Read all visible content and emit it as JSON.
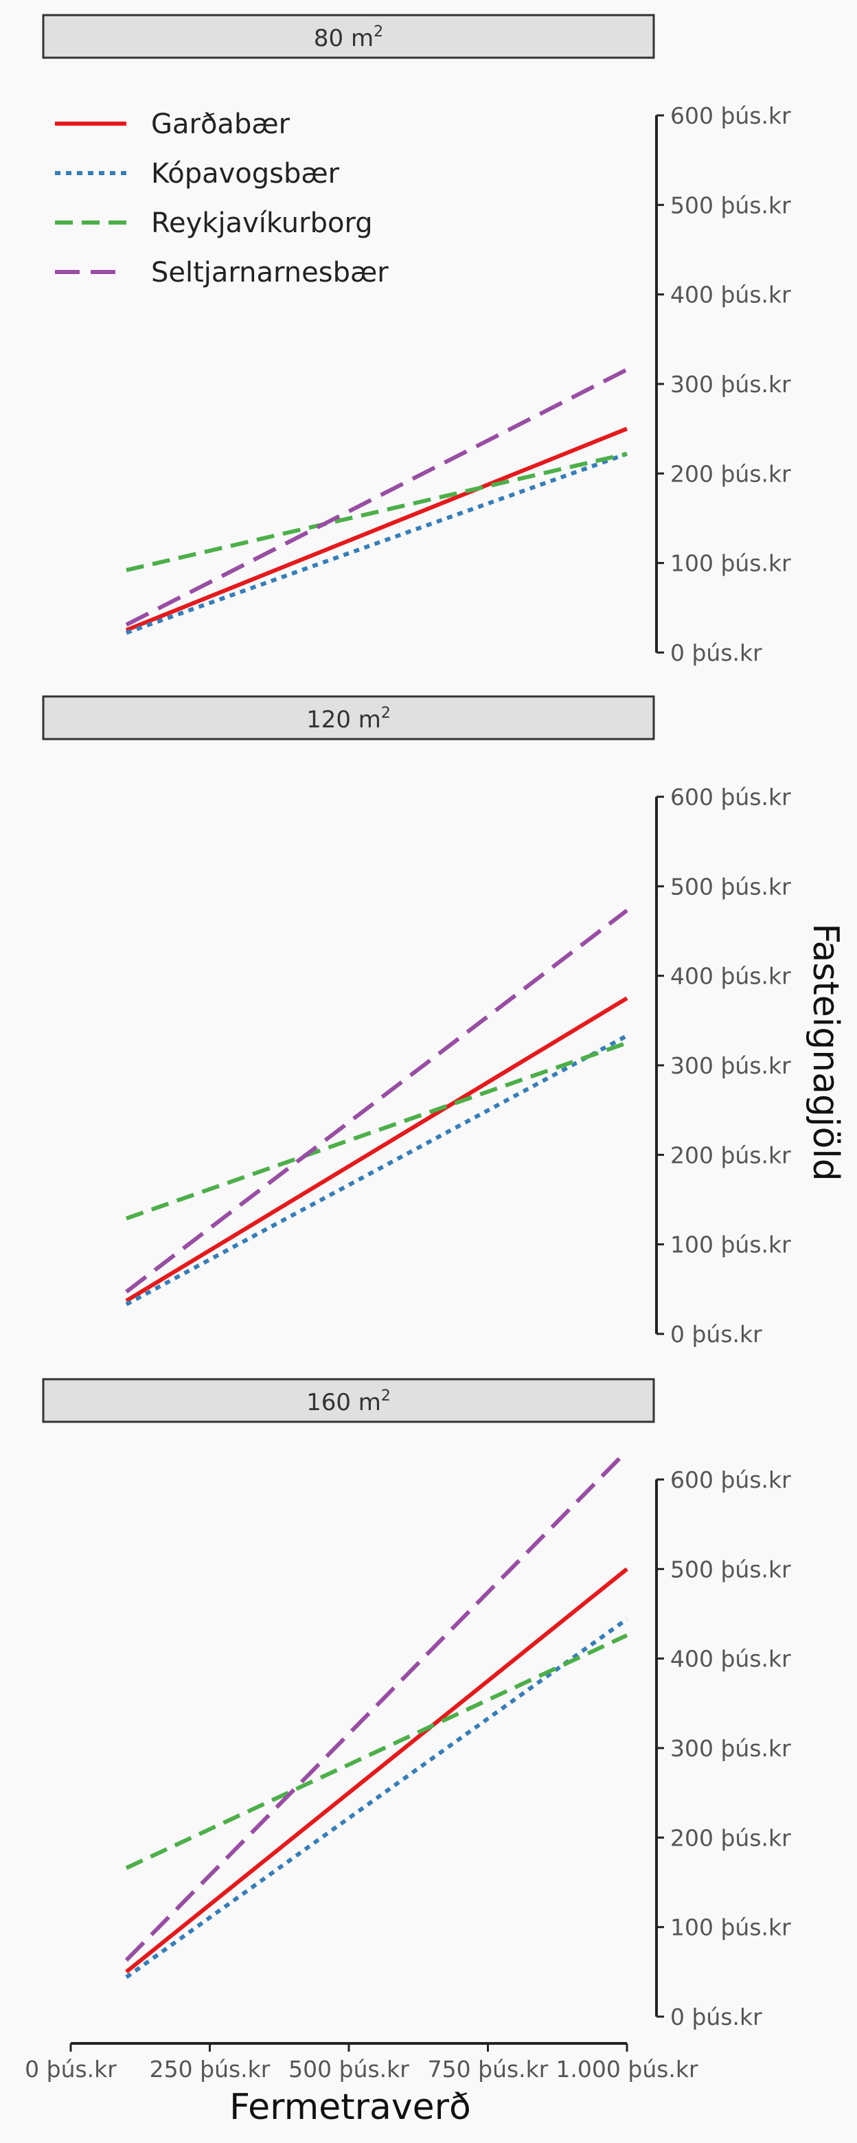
{
  "chart_data": {
    "type": "line",
    "xlabel": "Fermetraverð",
    "ylabel": "Fasteignagjöld",
    "x_ticks": [
      "0 þús.kr",
      "250 þús.kr",
      "500 þús.kr",
      "750 þús.kr",
      "1.000 þús.kr"
    ],
    "x_tick_values": [
      0,
      250,
      500,
      750,
      1000
    ],
    "xlim": [
      0,
      1000
    ],
    "y_ticks": [
      "0 þús.kr",
      "100 þús.kr",
      "200 þús.kr",
      "300 þús.kr",
      "400 þús.kr",
      "500 þús.kr",
      "600 þús.kr"
    ],
    "y_tick_values": [
      0,
      100,
      200,
      300,
      400,
      500,
      600
    ],
    "ylim": [
      0,
      600
    ],
    "grid": false,
    "legend_position": "top-left",
    "series_styles": [
      {
        "name": "Garðabær",
        "color": "#e41a1c",
        "dash": "solid"
      },
      {
        "name": "Kópavogsbær",
        "color": "#377eb8",
        "dash": "dotted"
      },
      {
        "name": "Reykjavíkurborg",
        "color": "#4daf4a",
        "dash": "dashed"
      },
      {
        "name": "Seltjarnarnesbær",
        "color": "#984ea3",
        "dash": "longdash"
      }
    ],
    "panels": [
      {
        "label_base": "80 m",
        "label_sup": "2",
        "series": [
          {
            "name": "Garðabær",
            "x": [
              100,
              1000
            ],
            "y": [
              25,
              250
            ]
          },
          {
            "name": "Kópavogsbær",
            "x": [
              100,
              1000
            ],
            "y": [
              22,
              222
            ]
          },
          {
            "name": "Reykjavíkurborg",
            "x": [
              100,
              1000
            ],
            "y": [
              92,
              222
            ]
          },
          {
            "name": "Seltjarnarnesbær",
            "x": [
              100,
              1000
            ],
            "y": [
              31,
              316
            ]
          }
        ]
      },
      {
        "label_base": "120 m",
        "label_sup": "2",
        "series": [
          {
            "name": "Garðabær",
            "x": [
              100,
              1000
            ],
            "y": [
              37,
              375
            ]
          },
          {
            "name": "Kópavogsbær",
            "x": [
              100,
              1000
            ],
            "y": [
              33,
              333
            ]
          },
          {
            "name": "Reykjavíkurborg",
            "x": [
              100,
              1000
            ],
            "y": [
              129,
              325
            ]
          },
          {
            "name": "Seltjarnarnesbær",
            "x": [
              100,
              1000
            ],
            "y": [
              47,
              473
            ]
          }
        ]
      },
      {
        "label_base": "160 m",
        "label_sup": "2",
        "series": [
          {
            "name": "Garðabær",
            "x": [
              100,
              1000
            ],
            "y": [
              50,
              500
            ]
          },
          {
            "name": "Kópavogsbær",
            "x": [
              100,
              1000
            ],
            "y": [
              44,
              444
            ]
          },
          {
            "name": "Reykjavíkurborg",
            "x": [
              100,
              1000
            ],
            "y": [
              166,
              426
            ]
          },
          {
            "name": "Seltjarnarnesbær",
            "x": [
              100,
              1000
            ],
            "y": [
              63,
              632
            ]
          }
        ]
      }
    ]
  }
}
